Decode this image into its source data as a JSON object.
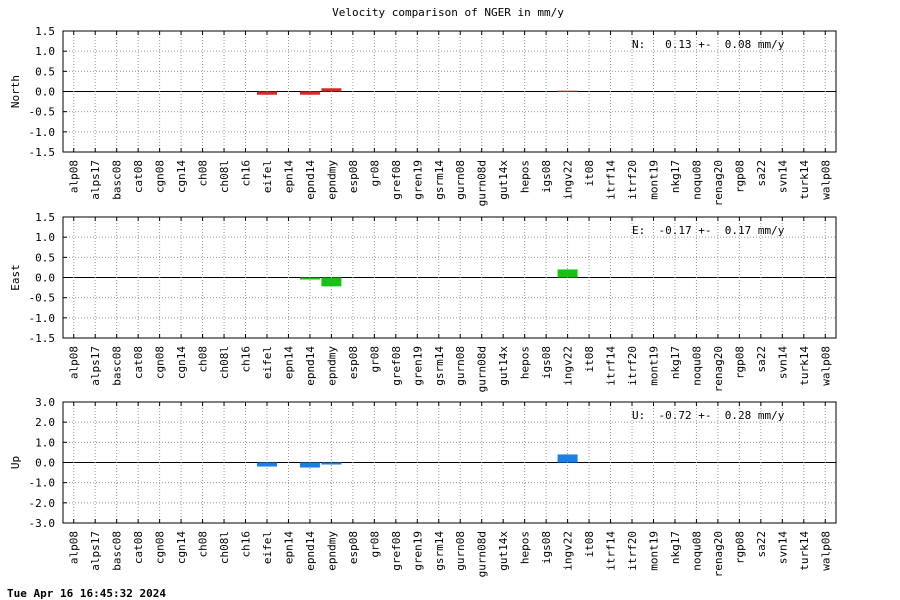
{
  "title": "Velocity comparison of NGER in mm/y",
  "timestamp": "Tue Apr 16 16:45:32 2024",
  "chart_data": [
    {
      "type": "bar",
      "ylabel": "North",
      "annotation": "N:   0.13 +-  0.08 mm/y",
      "color": "#d62828",
      "grid": true,
      "categories": [
        "alp08",
        "alps17",
        "basc08",
        "cat08",
        "cgn08",
        "cgn14",
        "ch08",
        "ch08l",
        "ch16",
        "eifel",
        "epn14",
        "epnd14",
        "epndmy",
        "esp08",
        "gr08",
        "gref08",
        "gren19",
        "gsrm14",
        "gurn08",
        "gurn08d",
        "gut14x",
        "hepos",
        "igs08",
        "ingv22",
        "it08",
        "itrf14",
        "itrf20",
        "mont19",
        "nkg17",
        "noqu08",
        "renag20",
        "rgp08",
        "sa22",
        "svn14",
        "turk14",
        "walp08"
      ],
      "values": [
        null,
        null,
        null,
        null,
        null,
        null,
        null,
        null,
        null,
        -0.08,
        null,
        -0.08,
        0.08,
        null,
        null,
        null,
        null,
        null,
        null,
        null,
        null,
        null,
        null,
        0.02,
        null,
        null,
        null,
        null,
        null,
        null,
        null,
        null,
        null,
        null,
        null,
        null
      ],
      "ylim": [
        -1.5,
        1.5
      ],
      "yticks": [
        -1.5,
        {
          "value": -1,
          "label": "-1.0"
        },
        -0.5,
        {
          "value": 0,
          "label": "0.0"
        },
        0.5,
        {
          "value": 1,
          "label": "1.0"
        },
        1.5
      ]
    },
    {
      "type": "bar",
      "ylabel": "East",
      "annotation": "E:  -0.17 +-  0.17 mm/y",
      "color": "#18c018",
      "grid": true,
      "categories": [
        "alp08",
        "alps17",
        "basc08",
        "cat08",
        "cgn08",
        "cgn14",
        "ch08",
        "ch08l",
        "ch16",
        "eifel",
        "epn14",
        "epnd14",
        "epndmy",
        "esp08",
        "gr08",
        "gref08",
        "gren19",
        "gsrm14",
        "gurn08",
        "gurn08d",
        "gut14x",
        "hepos",
        "igs08",
        "ingv22",
        "it08",
        "itrf14",
        "itrf20",
        "mont19",
        "nkg17",
        "noqu08",
        "renag20",
        "rgp08",
        "sa22",
        "svn14",
        "turk14",
        "walp08"
      ],
      "values": [
        null,
        null,
        null,
        null,
        null,
        null,
        null,
        null,
        null,
        null,
        null,
        -0.05,
        -0.22,
        null,
        null,
        null,
        null,
        null,
        null,
        null,
        null,
        null,
        null,
        0.2,
        null,
        null,
        null,
        null,
        null,
        null,
        null,
        null,
        null,
        null,
        null,
        null
      ],
      "ylim": [
        -1.5,
        1.5
      ],
      "yticks": [
        -1.5,
        {
          "value": -1,
          "label": "-1.0"
        },
        -0.5,
        {
          "value": 0,
          "label": "0.0"
        },
        0.5,
        {
          "value": 1,
          "label": "1.0"
        },
        1.5
      ]
    },
    {
      "type": "bar",
      "ylabel": "Up",
      "annotation": "U:  -0.72 +-  0.28 mm/y",
      "color": "#1a80e8",
      "grid": true,
      "categories": [
        "alp08",
        "alps17",
        "basc08",
        "cat08",
        "cgn08",
        "cgn14",
        "ch08",
        "ch08l",
        "ch16",
        "eifel",
        "epn14",
        "epnd14",
        "epndmy",
        "esp08",
        "gr08",
        "gref08",
        "gren19",
        "gsrm14",
        "gurn08",
        "gurn08d",
        "gut14x",
        "hepos",
        "igs08",
        "ingv22",
        "it08",
        "itrf14",
        "itrf20",
        "mont19",
        "nkg17",
        "noqu08",
        "renag20",
        "rgp08",
        "sa22",
        "svn14",
        "turk14",
        "walp08"
      ],
      "values": [
        null,
        null,
        null,
        null,
        null,
        null,
        null,
        null,
        null,
        -0.2,
        null,
        -0.25,
        -0.1,
        null,
        null,
        null,
        null,
        null,
        null,
        null,
        null,
        null,
        null,
        0.4,
        null,
        null,
        null,
        null,
        null,
        null,
        null,
        null,
        null,
        null,
        null,
        null
      ],
      "ylim": [
        -3,
        3
      ],
      "yticks": [
        {
          "value": -3,
          "label": "-3.0"
        },
        {
          "value": -2,
          "label": "-2.0"
        },
        {
          "value": -1,
          "label": "-1.0"
        },
        {
          "value": 0,
          "label": "0.0"
        },
        {
          "value": 1,
          "label": "1.0"
        },
        {
          "value": 2,
          "label": "2.0"
        },
        {
          "value": 3,
          "label": "3.0"
        }
      ]
    }
  ]
}
